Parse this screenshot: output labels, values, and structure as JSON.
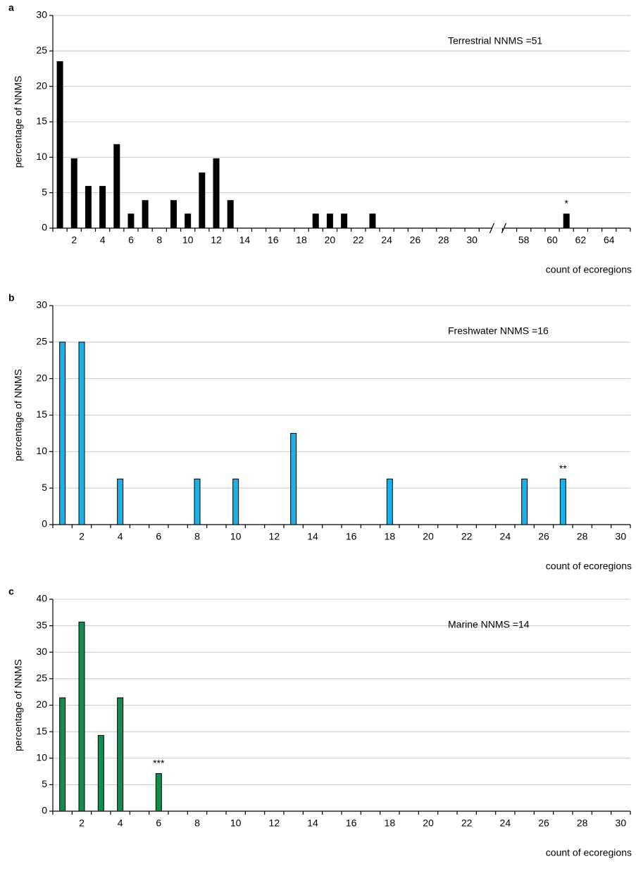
{
  "chart_data": [
    {
      "type": "bar",
      "panel_label": "a",
      "annotation": "Terrestrial NNMS =51",
      "y_label": "percentage of NNMS",
      "x_label": "count of ecoregions",
      "categories": [
        null,
        2,
        null,
        4,
        null,
        6,
        null,
        8,
        null,
        10,
        null,
        12,
        null,
        14,
        null,
        16,
        null,
        18,
        null,
        20,
        null,
        22,
        null,
        24,
        null,
        26,
        null,
        28,
        null,
        30,
        null,
        null,
        58,
        null,
        60,
        null,
        62,
        null,
        64,
        null
      ],
      "values": [
        23.5,
        9.8,
        5.9,
        5.9,
        11.8,
        2,
        3.9,
        0,
        3.9,
        2,
        7.8,
        9.8,
        3.9,
        0,
        0,
        0,
        0,
        0,
        2,
        2,
        2,
        0,
        2,
        0,
        0,
        0,
        0,
        0,
        0,
        0,
        0,
        0,
        0,
        0,
        0,
        2,
        0,
        0,
        0,
        0
      ],
      "color": "#000000",
      "ylim": [
        0,
        30
      ],
      "yticks": [
        0,
        5,
        10,
        15,
        20,
        25,
        30
      ],
      "grid": true,
      "axis_break": true,
      "markers": [
        {
          "text": "*",
          "index": 35
        }
      ]
    },
    {
      "type": "bar",
      "panel_label": "b",
      "annotation": "Freshwater NNMS =16",
      "y_label": "percentage of NNMS",
      "x_label": "count of ecoregions",
      "categories": [
        null,
        2,
        null,
        4,
        null,
        6,
        null,
        8,
        null,
        10,
        null,
        12,
        null,
        14,
        null,
        16,
        null,
        18,
        null,
        20,
        null,
        22,
        null,
        24,
        null,
        26,
        null,
        28,
        null,
        30
      ],
      "values": [
        25,
        25,
        0,
        6.25,
        0,
        0,
        0,
        6.25,
        0,
        6.25,
        0,
        0,
        12.5,
        0,
        0,
        0,
        0,
        6.25,
        0,
        0,
        0,
        0,
        0,
        0,
        6.25,
        0,
        6.25,
        0,
        0,
        0
      ],
      "color": "#1ab0e8",
      "ylim": [
        0,
        30
      ],
      "yticks": [
        0,
        5,
        10,
        15,
        20,
        25,
        30
      ],
      "grid": true,
      "markers": [
        {
          "text": "**",
          "index": 26
        }
      ]
    },
    {
      "type": "bar",
      "panel_label": "c",
      "annotation": "Marine NNMS =14",
      "y_label": "percentage of NNMS",
      "x_label": "count of ecoregions",
      "categories": [
        null,
        2,
        null,
        4,
        null,
        6,
        null,
        8,
        null,
        10,
        null,
        12,
        null,
        14,
        null,
        16,
        null,
        18,
        null,
        20,
        null,
        22,
        null,
        24,
        null,
        26,
        null,
        28,
        null,
        30
      ],
      "values": [
        21.4,
        35.7,
        14.3,
        21.4,
        0,
        7.1,
        0,
        0,
        0,
        0,
        0,
        0,
        0,
        0,
        0,
        0,
        0,
        0,
        0,
        0,
        0,
        0,
        0,
        0,
        0,
        0,
        0,
        0,
        0,
        0
      ],
      "color": "#138a4e",
      "ylim": [
        0,
        40
      ],
      "yticks": [
        0,
        5,
        10,
        15,
        20,
        25,
        30,
        35,
        40
      ],
      "grid": true,
      "markers": [
        {
          "text": "***",
          "index": 5
        }
      ]
    }
  ]
}
